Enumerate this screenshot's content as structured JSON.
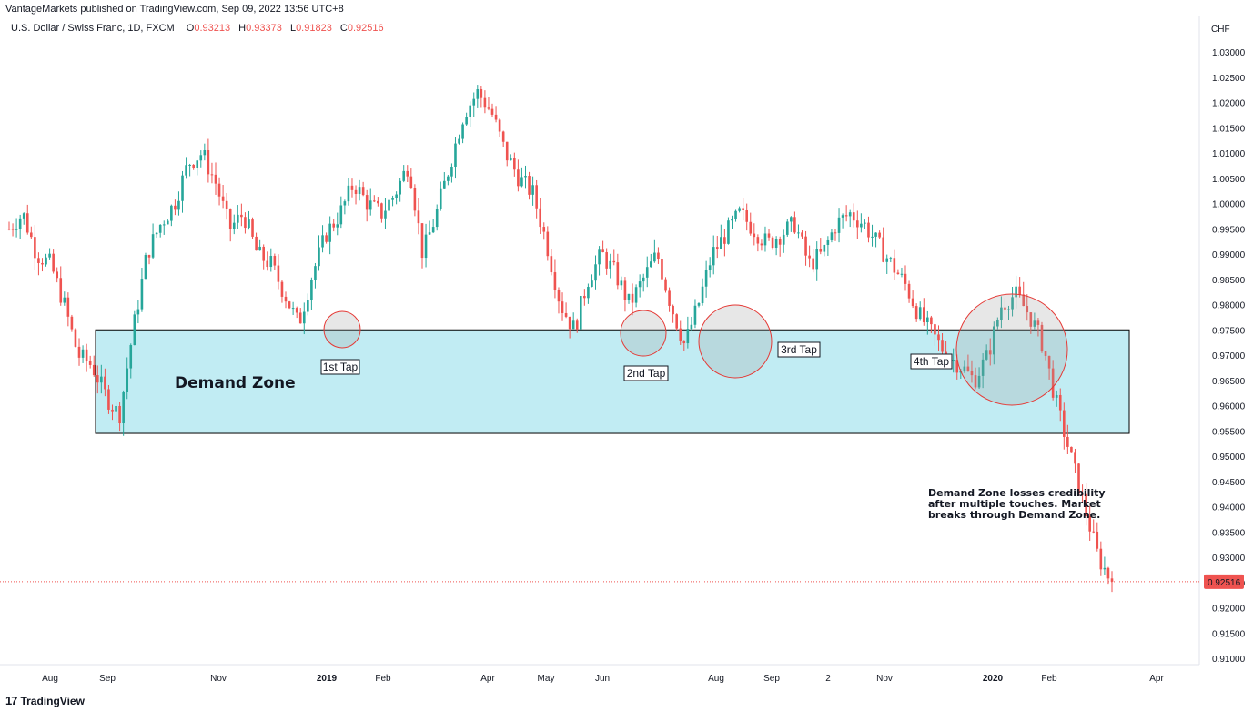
{
  "header": {
    "publisher_line": "VantageMarkets published on TradingView.com, Sep 09, 2022 13:56 UTC+8",
    "symbol": "U.S. Dollar / Swiss Franc, 1D, FXCM",
    "ohlc": [
      {
        "key": "O",
        "value": "0.93213"
      },
      {
        "key": "H",
        "value": "0.93373"
      },
      {
        "key": "L",
        "value": "0.91823"
      },
      {
        "key": "C",
        "value": "0.92516"
      }
    ]
  },
  "branding": {
    "logo": "17",
    "name": "TradingView"
  },
  "annotations": {
    "zone_label": "Demand Zone",
    "taps": [
      "1st Tap",
      "2nd Tap",
      "3rd Tap",
      "4th Tap"
    ],
    "note": "Demand Zone losses credibility\nafter multiple touches. Market\nbreaks through Demand Zone."
  },
  "colors": {
    "up": "#26a69a",
    "down": "#ef5350",
    "zone_fill": "#c1ecf3",
    "zone_border": "#000000",
    "circle_border": "#e53935",
    "price_tag": "#ef5350"
  },
  "chart_data": {
    "type": "candlestick",
    "title": "U.S. Dollar / Swiss Franc, 1D, FXCM",
    "currency_label": "CHF",
    "last_price": "0.92516",
    "ylim": [
      0.905,
      1.035
    ],
    "y_ticks": [
      "1.03000",
      "1.02500",
      "1.02000",
      "1.01500",
      "1.01000",
      "1.00500",
      "1.00000",
      "0.99500",
      "0.99000",
      "0.98500",
      "0.98000",
      "0.97500",
      "0.97000",
      "0.96500",
      "0.96000",
      "0.95500",
      "0.95000",
      "0.94500",
      "0.94000",
      "0.93500",
      "0.93000",
      "0.92500",
      "0.92000",
      "0.91500",
      "0.91000"
    ],
    "x_ticks": [
      {
        "label": "Aug",
        "bold": false
      },
      {
        "label": "Sep",
        "bold": false
      },
      {
        "label": "Nov",
        "bold": false
      },
      {
        "label": "2019",
        "bold": true
      },
      {
        "label": "Feb",
        "bold": false
      },
      {
        "label": "Apr",
        "bold": false
      },
      {
        "label": "May",
        "bold": false
      },
      {
        "label": "Jun",
        "bold": false
      },
      {
        "label": "Aug",
        "bold": false
      },
      {
        "label": "Sep",
        "bold": false
      },
      {
        "label": "2",
        "bold": false
      },
      {
        "label": "Nov",
        "bold": false
      },
      {
        "label": "2020",
        "bold": true
      },
      {
        "label": "Feb",
        "bold": false
      },
      {
        "label": "Apr",
        "bold": false
      }
    ],
    "demand_zone": {
      "top": 0.975,
      "bottom": 0.9545
    },
    "path": [
      0.995,
      0.998,
      0.99,
      0.988,
      0.98,
      0.97,
      0.968,
      0.962,
      0.958,
      0.975,
      0.99,
      0.996,
      1.0,
      1.008,
      1.01,
      1.004,
      0.995,
      0.998,
      0.99,
      0.988,
      0.982,
      0.976,
      0.986,
      0.994,
      0.998,
      1.004,
      1.0,
      0.998,
      1.002,
      1.008,
      0.99,
      0.998,
      1.008,
      1.018,
      1.022,
      1.018,
      1.01,
      1.005,
      1.002,
      0.992,
      0.98,
      0.975,
      0.985,
      0.99,
      0.986,
      0.98,
      0.985,
      0.99,
      0.98,
      0.972,
      0.98,
      0.99,
      0.994,
      0.998,
      0.995,
      0.992,
      0.994,
      0.996,
      0.988,
      0.99,
      0.996,
      0.998,
      0.996,
      0.992,
      0.988,
      0.984,
      0.978,
      0.974,
      0.97,
      0.968,
      0.965,
      0.97,
      0.98,
      0.982,
      0.978,
      0.972,
      0.96,
      0.95,
      0.94,
      0.93,
      0.925
    ],
    "tap_lows": [
      0.9735,
      0.972,
      0.9675,
      0.962
    ]
  }
}
